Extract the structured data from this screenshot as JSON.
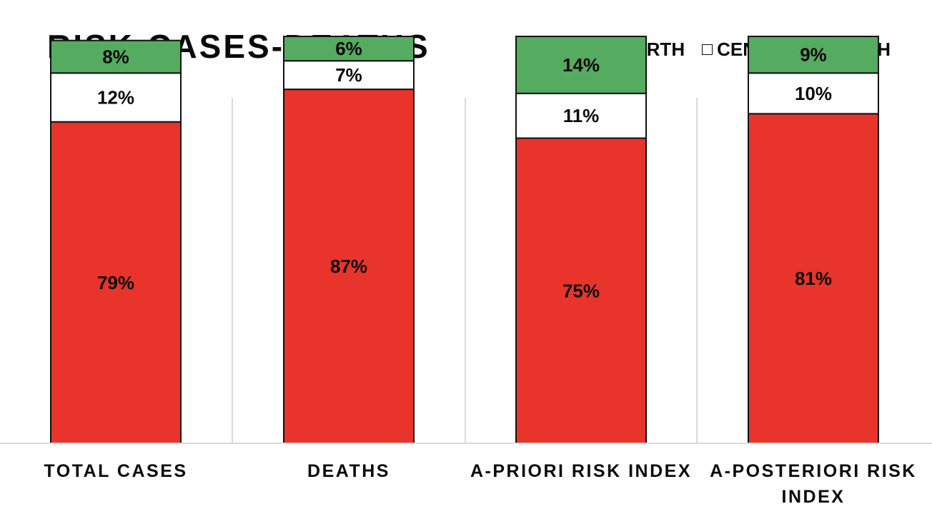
{
  "chart_data": {
    "type": "bar",
    "stacked": true,
    "percent_stacked": true,
    "title": "RISK-CASES-DEATHS",
    "categories": [
      [
        "TOTAL CASES"
      ],
      [
        "DEATHS"
      ],
      [
        "A-PRIORI RISK INDEX"
      ],
      [
        "A-POSTERIORI RISK",
        "INDEX"
      ]
    ],
    "series": [
      {
        "name": "NORTH",
        "color": "#e8342a",
        "values": [
          79,
          87,
          75,
          81
        ],
        "labels": [
          "79%",
          "87%",
          "75%",
          "81%"
        ]
      },
      {
        "name": "CENTER",
        "color": "#ffffff",
        "values": [
          12,
          7,
          11,
          10
        ],
        "labels": [
          "12%",
          "7%",
          "11%",
          "10%"
        ]
      },
      {
        "name": "SOUTH",
        "color": "#55ab5f",
        "values": [
          8,
          6,
          14,
          9
        ],
        "labels": [
          "8%",
          "6%",
          "14%",
          "9%"
        ]
      }
    ],
    "ylim": [
      0,
      100
    ],
    "legend_position": "top-right",
    "grid": false
  }
}
